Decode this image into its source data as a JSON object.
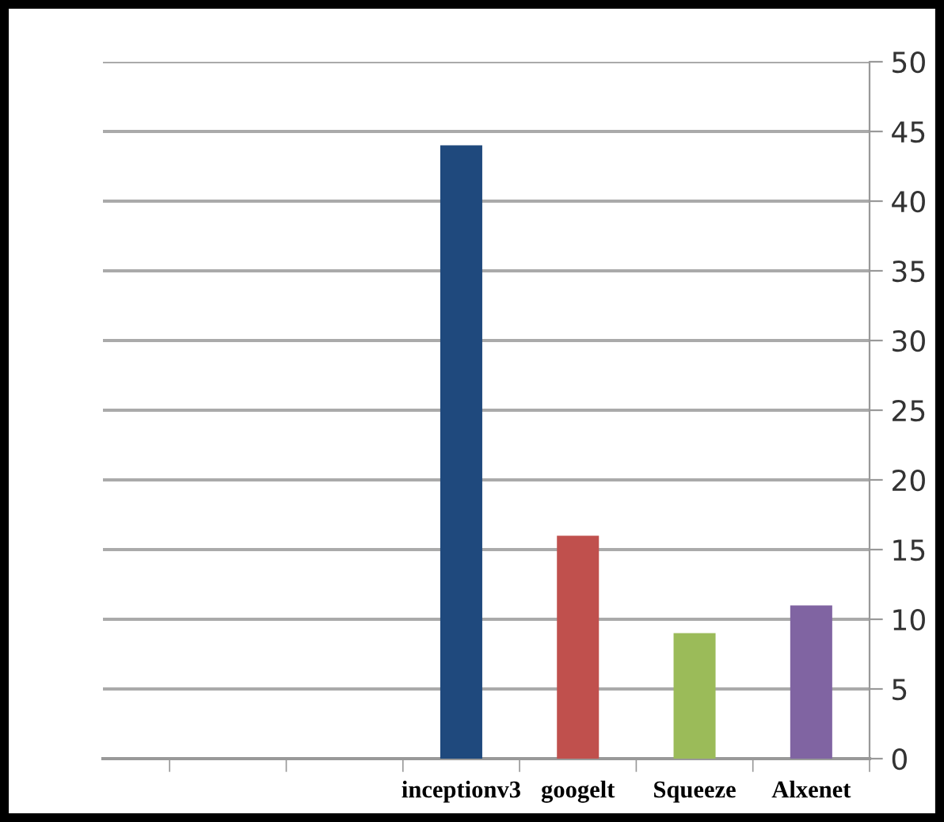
{
  "chart_data": {
    "type": "bar",
    "categories": [
      null,
      null,
      null,
      "inceptionv3",
      "googelt",
      "Squeeze",
      "Alxenet"
    ],
    "values": [
      null,
      null,
      null,
      44,
      16,
      9,
      11
    ],
    "colors": [
      "#1f497d",
      "#1f497d",
      "#1f497d",
      "#1f497d",
      "#c0504d",
      "#9bbb59",
      "#8064a2"
    ],
    "ylim": [
      0,
      50
    ],
    "yticks": [
      0,
      5,
      10,
      15,
      20,
      25,
      30,
      35,
      40,
      45,
      50
    ],
    "grid": "y"
  }
}
